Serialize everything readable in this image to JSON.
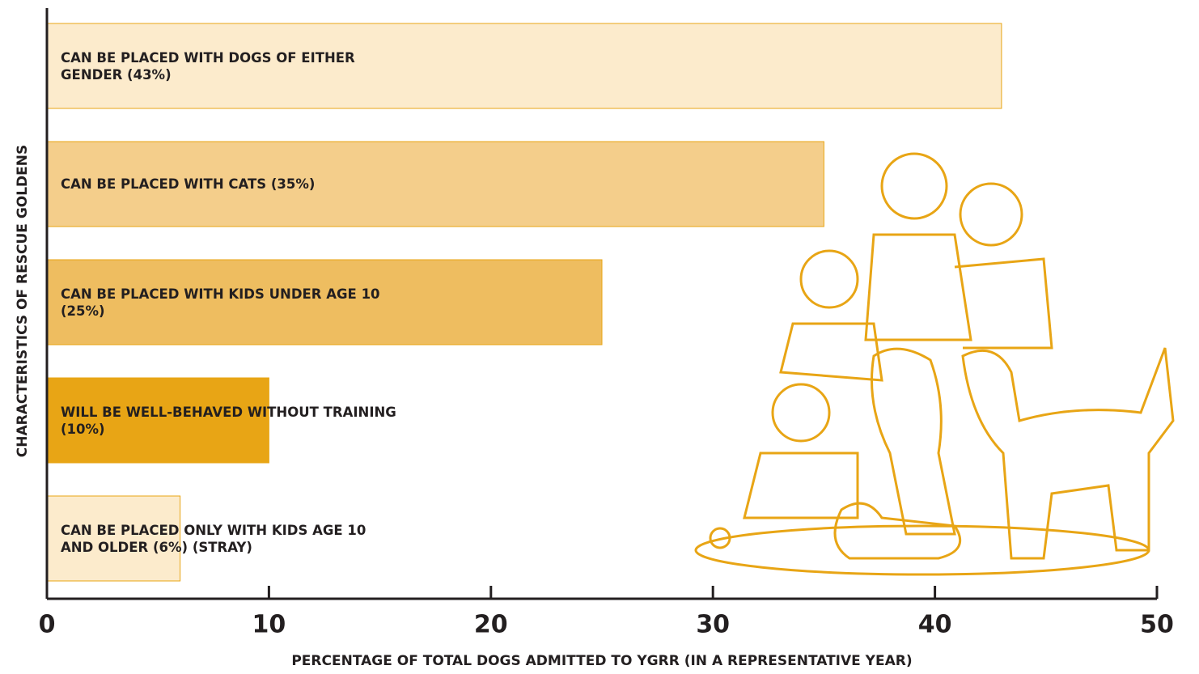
{
  "chart_data": {
    "type": "hbar",
    "x_label": "PERCENTAGE OF TOTAL DOGS ADMITTED TO YGRR (IN A REPRESENTATIVE YEAR)",
    "y_label": "CHARACTERISTICS OF RESCUE GOLDENS",
    "categories": [
      "CAN BE PLACED WITH DOGS OF EITHER GENDER (43%)",
      "CAN BE PLACED WITH CATS (35%)",
      "CAN BE PLACED WITH KIDS UNDER AGE 10 (25%)",
      "WILL BE WELL-BEHAVED WITHOUT TRAINING (10%)",
      "CAN BE PLACED ONLY WITH KIDS AGE 10 AND OLDER (6%) (STRAY)"
    ],
    "values": [
      43,
      35,
      25,
      10,
      6
    ],
    "colors": [
      "#fcebcc",
      "#f4ce8b",
      "#eebd60",
      "#e8a515",
      "#fcebcc"
    ],
    "xlim": [
      0,
      50
    ],
    "xticks": [
      0,
      10,
      20,
      30,
      40,
      50
    ]
  }
}
